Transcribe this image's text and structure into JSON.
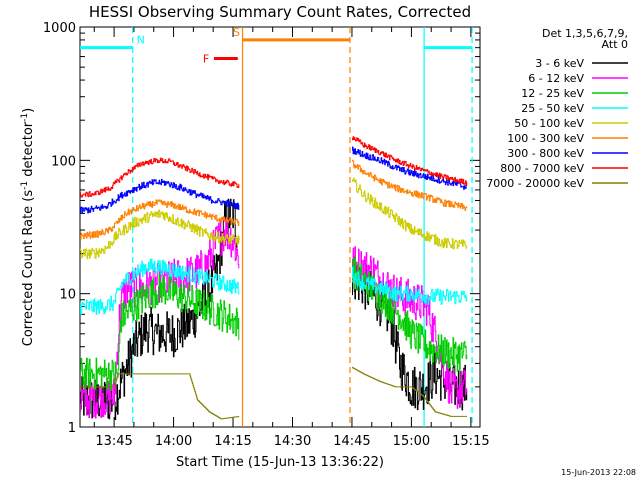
{
  "chart_data": {
    "type": "line",
    "title": "HESSI Observing Summary Count Rates, Corrected",
    "xlabel": "Start Time (15-Jun-13 13:36:22)",
    "ylabel": "Corrected Count Rate (s⁻¹ detector⁻¹)",
    "ylabel_main": "Corrected Count Rate (s",
    "ylabel_sup1": "-1",
    "ylabel_mid": " detector",
    "ylabel_sup2": "-1",
    "ylabel_end": ")",
    "yscale": "log",
    "ylim": [
      1,
      1000
    ],
    "yticks": [
      {
        "v": 1,
        "label": "1"
      },
      {
        "v": 10,
        "label": "10"
      },
      {
        "v": 100,
        "label": "100"
      },
      {
        "v": 1000,
        "label": "1000"
      }
    ],
    "xlim_minutes": [
      816.4,
      917.3
    ],
    "xticks": [
      {
        "t": 825,
        "label": "13:45"
      },
      {
        "t": 840,
        "label": "14:00"
      },
      {
        "t": 855,
        "label": "14:15"
      },
      {
        "t": 870,
        "label": "14:30"
      },
      {
        "t": 885,
        "label": "14:45"
      },
      {
        "t": 900,
        "label": "15:00"
      },
      {
        "t": 915,
        "label": "15:15"
      }
    ],
    "legend": {
      "position": "right",
      "header": [
        "Det 1,3,5,6,7,9,",
        "Att 0"
      ],
      "entries": [
        {
          "label": "3 - 6 keV",
          "color": "#000000"
        },
        {
          "label": "6 - 12 keV",
          "color": "#ff00ff"
        },
        {
          "label": "12 - 25 keV",
          "color": "#00cc00"
        },
        {
          "label": "25 - 50 keV",
          "color": "#00ffff"
        },
        {
          "label": "50 - 100 keV",
          "color": "#cccc00"
        },
        {
          "label": "100 - 300 keV",
          "color": "#ff7f00"
        },
        {
          "label": "300 - 800 keV",
          "color": "#0000ff"
        },
        {
          "label": "800 - 7000 keV",
          "color": "#ff0000"
        },
        {
          "label": "7000 - 20000 keV",
          "color": "#808000"
        }
      ]
    },
    "flags": [
      {
        "label": "N",
        "color": "#00ffff",
        "level": 700,
        "segments": [
          [
            816.4,
            829.7
          ],
          [
            903.2,
            915.3
          ]
        ]
      },
      {
        "label": "S",
        "color": "#ff7f00",
        "level": 800,
        "segments": [
          [
            857.4,
            884.5
          ]
        ]
      },
      {
        "label": "F",
        "color": "#ff0000",
        "level": 580,
        "segments": [
          [
            850.2,
            856.2
          ]
        ]
      }
    ],
    "vlines": [
      {
        "t": 829.7,
        "color": "#00ffff",
        "style": "dashed"
      },
      {
        "t": 857.4,
        "color": "#ff7f00",
        "style": "solid"
      },
      {
        "t": 884.5,
        "color": "#ff7f00",
        "style": "dashed"
      },
      {
        "t": 903.2,
        "color": "#00ffff",
        "style": "solid"
      },
      {
        "t": 915.3,
        "color": "#00ffff",
        "style": "dashed"
      }
    ],
    "series": [
      {
        "name": "3 - 6 keV",
        "color": "#000000",
        "noise": 0.35,
        "segments": [
          [
            [
              816.4,
              1.6
            ],
            [
              825,
              1.6
            ],
            [
              827.5,
              2.5
            ],
            [
              830,
              4
            ],
            [
              833,
              5.5
            ],
            [
              836,
              5
            ],
            [
              840,
              5
            ],
            [
              844,
              6
            ],
            [
              848,
              9
            ],
            [
              851,
              15
            ],
            [
              853,
              35
            ],
            [
              855,
              40
            ],
            [
              856.5,
              25
            ]
          ],
          [
            [
              885,
              14
            ],
            [
              887,
              12
            ],
            [
              890,
              10
            ],
            [
              893,
              8
            ],
            [
              895,
              6
            ],
            [
              897,
              3
            ],
            [
              900,
              2
            ],
            [
              903,
              2
            ],
            [
              906,
              2.5
            ],
            [
              910,
              2
            ],
            [
              914,
              2
            ]
          ]
        ]
      },
      {
        "name": "6 - 12 keV",
        "color": "#ff00ff",
        "noise": 0.3,
        "segments": [
          [
            [
              816.4,
              1.6
            ],
            [
              825,
              1.7
            ],
            [
              826.5,
              8
            ],
            [
              828,
              11
            ],
            [
              832,
              11
            ],
            [
              836,
              12
            ],
            [
              840,
              13
            ],
            [
              845,
              14
            ],
            [
              848,
              16
            ],
            [
              851,
              25
            ],
            [
              853,
              30
            ],
            [
              855,
              25
            ],
            [
              856.5,
              18
            ]
          ],
          [
            [
              885,
              17
            ],
            [
              887,
              16
            ],
            [
              890,
              15
            ],
            [
              893,
              12
            ],
            [
              896,
              10
            ],
            [
              900,
              9
            ],
            [
              904,
              8
            ],
            [
              910,
              1.8
            ],
            [
              914,
              2
            ]
          ]
        ]
      },
      {
        "name": "12 - 25 keV",
        "color": "#00cc00",
        "noise": 0.25,
        "segments": [
          [
            [
              816.4,
              2.5
            ],
            [
              826,
              2.5
            ],
            [
              826.6,
              6.5
            ],
            [
              830,
              8
            ],
            [
              834,
              10
            ],
            [
              837,
              11
            ],
            [
              840,
              10
            ],
            [
              844,
              9
            ],
            [
              848,
              8
            ],
            [
              852,
              7
            ],
            [
              856.5,
              6
            ]
          ],
          [
            [
              885,
              15
            ],
            [
              887,
              13
            ],
            [
              890,
              11
            ],
            [
              893,
              9
            ],
            [
              897,
              7
            ],
            [
              900,
              5
            ],
            [
              904,
              4
            ],
            [
              910,
              3.5
            ],
            [
              914,
              3.5
            ]
          ]
        ]
      },
      {
        "name": "25 - 50 keV",
        "color": "#00ffff",
        "noise": 0.12,
        "segments": [
          [
            [
              816.4,
              8
            ],
            [
              822,
              8
            ],
            [
              825,
              8.5
            ],
            [
              827,
              12
            ],
            [
              830,
              14
            ],
            [
              833,
              16
            ],
            [
              836,
              16
            ],
            [
              840,
              15
            ],
            [
              844,
              14
            ],
            [
              848,
              13
            ],
            [
              852,
              12
            ],
            [
              856.5,
              11
            ]
          ],
          [
            [
              885,
              14
            ],
            [
              888,
              12
            ],
            [
              892,
              11
            ],
            [
              896,
              10
            ],
            [
              900,
              10
            ],
            [
              904,
              9.5
            ],
            [
              910,
              9.5
            ],
            [
              914,
              9.5
            ]
          ]
        ]
      },
      {
        "name": "50 - 100 keV",
        "color": "#cccc00",
        "noise": 0.08,
        "segments": [
          [
            [
              816.4,
              20
            ],
            [
              820,
              20
            ],
            [
              823,
              22
            ],
            [
              826,
              28
            ],
            [
              830,
              34
            ],
            [
              834,
              38
            ],
            [
              837,
              40
            ],
            [
              840,
              36
            ],
            [
              844,
              32
            ],
            [
              848,
              28
            ],
            [
              852,
              26
            ],
            [
              856.5,
              25
            ]
          ],
          [
            [
              885,
              70
            ],
            [
              888,
              55
            ],
            [
              892,
              45
            ],
            [
              896,
              37
            ],
            [
              900,
              30
            ],
            [
              904,
              27
            ],
            [
              908,
              24
            ],
            [
              914,
              23
            ]
          ]
        ]
      },
      {
        "name": "100 - 300 keV",
        "color": "#ff7f00",
        "noise": 0.05,
        "segments": [
          [
            [
              816.4,
              27
            ],
            [
              821,
              28
            ],
            [
              824,
              30
            ],
            [
              828,
              40
            ],
            [
              832,
              45
            ],
            [
              836,
              48
            ],
            [
              840,
              46
            ],
            [
              844,
              42
            ],
            [
              848,
              39
            ],
            [
              852,
              36
            ],
            [
              856.5,
              34
            ]
          ],
          [
            [
              885,
              95
            ],
            [
              888,
              82
            ],
            [
              892,
              70
            ],
            [
              896,
              62
            ],
            [
              900,
              57
            ],
            [
              904,
              53
            ],
            [
              908,
              48
            ],
            [
              914,
              44
            ]
          ]
        ]
      },
      {
        "name": "300 - 800 keV",
        "color": "#0000ff",
        "noise": 0.05,
        "segments": [
          [
            [
              816.4,
              42
            ],
            [
              820,
              43
            ],
            [
              823,
              45
            ],
            [
              827,
              55
            ],
            [
              831,
              63
            ],
            [
              835,
              68
            ],
            [
              838,
              68
            ],
            [
              842,
              62
            ],
            [
              846,
              55
            ],
            [
              850,
              50
            ],
            [
              853,
              48
            ],
            [
              856.5,
              45
            ]
          ],
          [
            [
              885,
              120
            ],
            [
              888,
              110
            ],
            [
              892,
              100
            ],
            [
              896,
              88
            ],
            [
              900,
              80
            ],
            [
              904,
              75
            ],
            [
              908,
              70
            ],
            [
              914,
              63
            ]
          ]
        ]
      },
      {
        "name": "800 - 7000 keV",
        "color": "#ff0000",
        "noise": 0.04,
        "segments": [
          [
            [
              816.4,
              55
            ],
            [
              820,
              56
            ],
            [
              824,
              62
            ],
            [
              828,
              80
            ],
            [
              832,
              95
            ],
            [
              836,
              100
            ],
            [
              839,
              98
            ],
            [
              842,
              90
            ],
            [
              846,
              80
            ],
            [
              850,
              72
            ],
            [
              853,
              68
            ],
            [
              856.5,
              65
            ]
          ],
          [
            [
              885,
              150
            ],
            [
              888,
              130
            ],
            [
              892,
              115
            ],
            [
              896,
              100
            ],
            [
              900,
              90
            ],
            [
              904,
              82
            ],
            [
              908,
              75
            ],
            [
              914,
              68
            ]
          ]
        ]
      },
      {
        "name": "7000 - 20000 keV",
        "color": "#808000",
        "noise": 0.0,
        "segments": [
          [
            [
              816.4,
              2
            ],
            [
              825,
              2
            ],
            [
              826,
              2.5
            ],
            [
              835,
              2.5
            ],
            [
              840,
              2.5
            ],
            [
              844,
              2.5
            ],
            [
              846,
              1.6
            ],
            [
              849,
              1.3
            ],
            [
              852,
              1.15
            ],
            [
              856.5,
              1.2
            ]
          ],
          [
            [
              885,
              2.8
            ],
            [
              888,
              2.5
            ],
            [
              892,
              2.2
            ],
            [
              896,
              2
            ],
            [
              900,
              2
            ],
            [
              903,
              1.7
            ],
            [
              906,
              1.3
            ],
            [
              910,
              1.2
            ],
            [
              914,
              1.2
            ]
          ]
        ]
      }
    ]
  },
  "footer": {
    "timestamp": "15-Jun-2013 22:08"
  }
}
